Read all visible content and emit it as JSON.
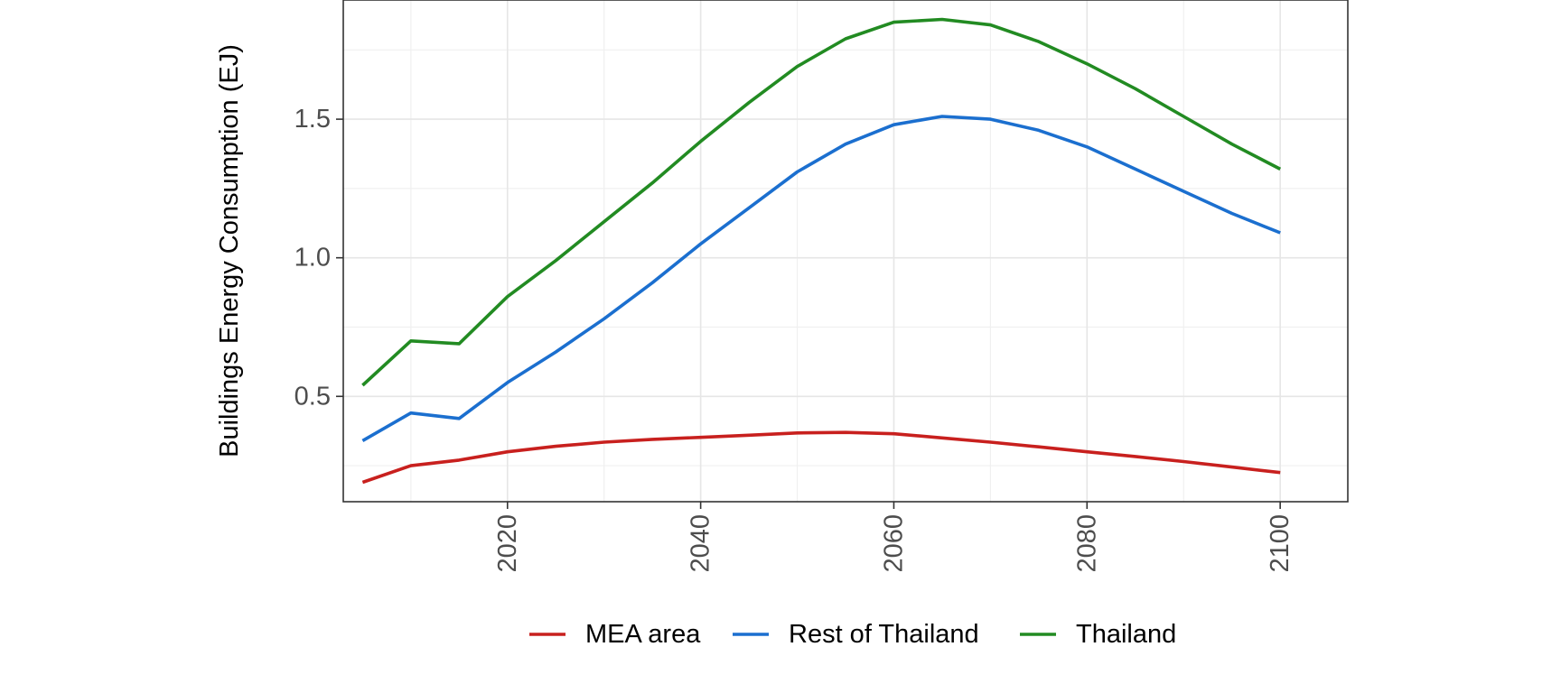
{
  "chart_data": {
    "type": "line",
    "title": "",
    "xlabel": "",
    "ylabel": "Buildings Energy Consumption (EJ)",
    "xlim": [
      2003,
      2107
    ],
    "ylim": [
      0.12,
      1.93
    ],
    "x_ticks": [
      2020,
      2040,
      2060,
      2080,
      2100
    ],
    "y_ticks": [
      0.5,
      1.0,
      1.5
    ],
    "x_tick_labels": [
      "2020",
      "2040",
      "2060",
      "2080",
      "2100"
    ],
    "y_tick_labels": [
      "0.5",
      "1.0",
      "1.5"
    ],
    "grid": true,
    "legend_position": "bottom",
    "x": [
      2005,
      2010,
      2015,
      2020,
      2025,
      2030,
      2035,
      2040,
      2045,
      2050,
      2055,
      2060,
      2065,
      2070,
      2075,
      2080,
      2085,
      2090,
      2095,
      2100
    ],
    "series": [
      {
        "name": "MEA area",
        "color": "#c8201e",
        "values": [
          0.19,
          0.25,
          0.27,
          0.3,
          0.32,
          0.335,
          0.345,
          0.352,
          0.36,
          0.368,
          0.37,
          0.365,
          0.35,
          0.335,
          0.318,
          0.3,
          0.283,
          0.265,
          0.245,
          0.225
        ]
      },
      {
        "name": "Rest of Thailand",
        "color": "#1b6fcf",
        "values": [
          0.34,
          0.44,
          0.42,
          0.55,
          0.66,
          0.78,
          0.91,
          1.05,
          1.18,
          1.31,
          1.41,
          1.48,
          1.51,
          1.5,
          1.46,
          1.4,
          1.32,
          1.24,
          1.16,
          1.09
        ]
      },
      {
        "name": "Thailand",
        "color": "#228b22",
        "values": [
          0.54,
          0.7,
          0.69,
          0.86,
          0.99,
          1.13,
          1.27,
          1.42,
          1.56,
          1.69,
          1.79,
          1.85,
          1.86,
          1.84,
          1.78,
          1.7,
          1.61,
          1.51,
          1.41,
          1.32
        ]
      }
    ]
  }
}
